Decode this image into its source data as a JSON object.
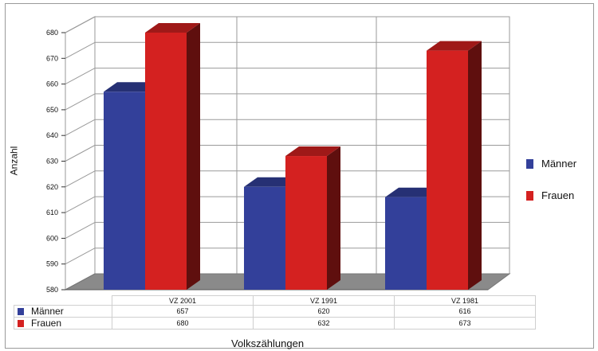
{
  "chart_data": {
    "type": "bar",
    "categories": [
      "VZ 2001",
      "VZ 1991",
      "VZ 1981"
    ],
    "series": [
      {
        "name": "Männer",
        "values": [
          657,
          620,
          616
        ]
      },
      {
        "name": "Frauen",
        "values": [
          680,
          632,
          673
        ]
      }
    ],
    "xlabel": "Volkszählungen",
    "ylabel": "Anzahl",
    "ylim": [
      580,
      680
    ],
    "yticks": [
      580,
      590,
      600,
      610,
      620,
      630,
      640,
      650,
      660,
      670,
      680
    ],
    "grid": true,
    "legend_position": "right",
    "data_table": true,
    "colors": {
      "Männer": "#33409a",
      "Frauen": "#d42120",
      "floor": "#8a8a8a"
    }
  }
}
